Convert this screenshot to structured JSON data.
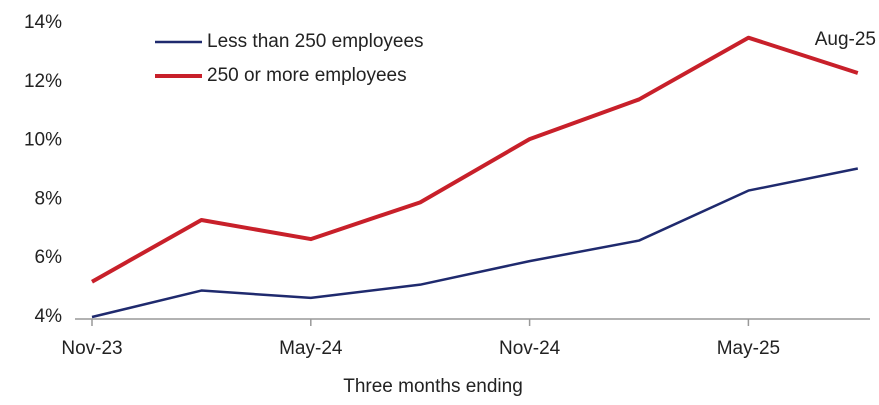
{
  "chart_data": {
    "type": "line",
    "x_label": "Three months ending",
    "annotation": "Aug-25",
    "categories": [
      "Nov-23",
      null,
      "May-24",
      null,
      "Nov-24",
      null,
      "May-25",
      null
    ],
    "series": [
      {
        "name": "Less than 250 employees",
        "color": "#1f2a6e",
        "values": [
          4.0,
          4.9,
          4.65,
          5.1,
          5.9,
          6.6,
          8.3,
          9.05
        ]
      },
      {
        "name": "250 or more employees",
        "color": "#c8202a",
        "values": [
          5.2,
          7.3,
          6.65,
          7.9,
          10.05,
          11.4,
          13.5,
          12.3
        ]
      }
    ],
    "ylim": [
      4,
      14
    ],
    "yticks": [
      {
        "value": 4,
        "label": "4%"
      },
      {
        "value": 6,
        "label": "6%"
      },
      {
        "value": 8,
        "label": "8%"
      },
      {
        "value": 10,
        "label": "10%"
      },
      {
        "value": 12,
        "label": "12%"
      },
      {
        "value": 14,
        "label": "14%"
      }
    ],
    "grid": false,
    "legend": "upper left"
  }
}
